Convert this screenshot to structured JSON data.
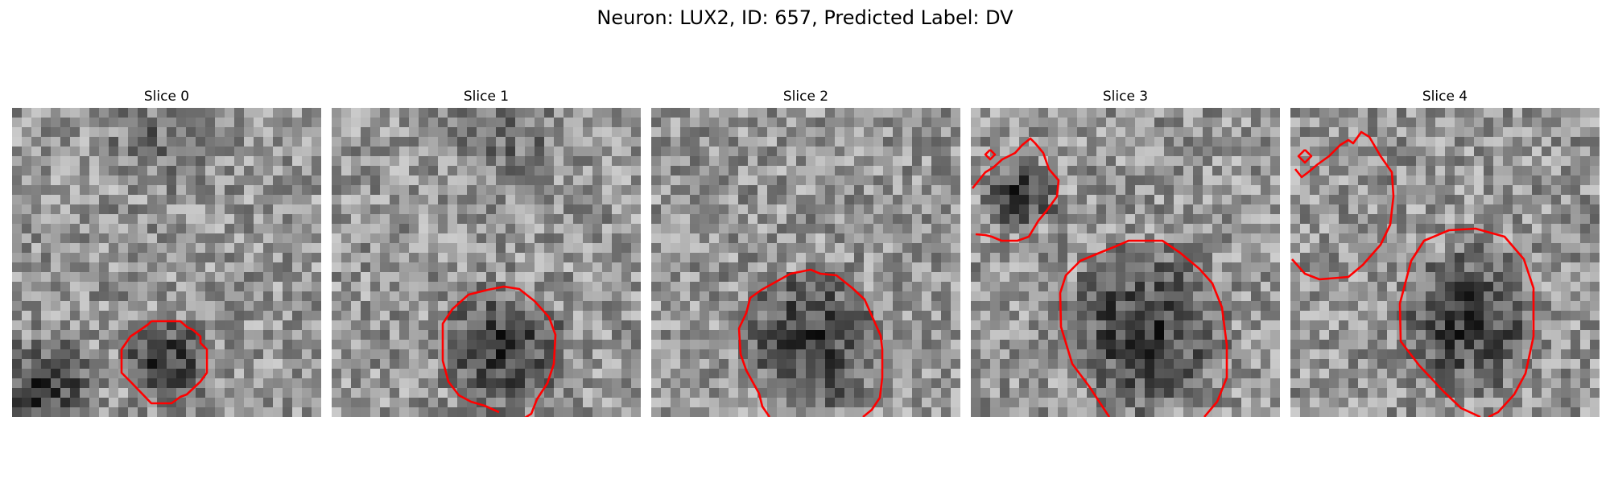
{
  "figure": {
    "title": "Neuron: LUX2, ID: 657, Predicted Label: DV"
  },
  "panels": [
    {
      "title": "Slice 0"
    },
    {
      "title": "Slice 1"
    },
    {
      "title": "Slice 2"
    },
    {
      "title": "Slice 3"
    },
    {
      "title": "Slice 4"
    }
  ],
  "colors": {
    "background": "#ffffff",
    "contour": "#ff0000",
    "colormap": "grayscale"
  }
}
